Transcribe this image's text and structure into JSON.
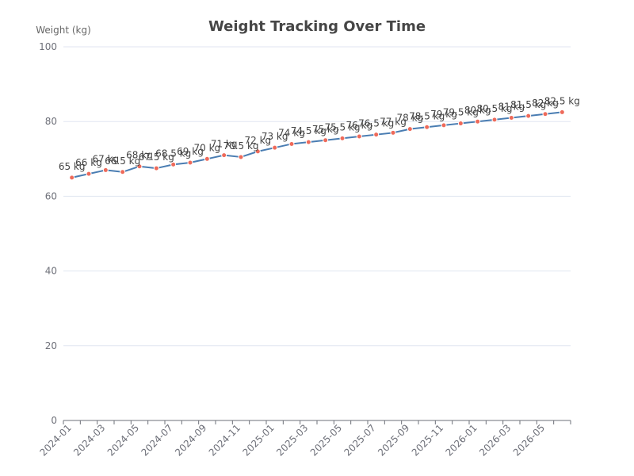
{
  "chart_data": {
    "type": "line",
    "title": "Weight Tracking Over Time",
    "xlabel": "",
    "ylabel": "Weight (kg)",
    "ylim": [
      0,
      100
    ],
    "yticks": [
      0,
      20,
      40,
      60,
      80,
      100
    ],
    "x_tick_labels": [
      "2024-01",
      "2024-03",
      "2024-05",
      "2024-07",
      "2024-09",
      "2024-11",
      "2025-01",
      "2025-03",
      "2025-05",
      "2025-07",
      "2025-09",
      "2025-11",
      "2026-01",
      "2026-03",
      "2026-05"
    ],
    "grid": true,
    "legend": "none",
    "line_color": "#4a7db2",
    "point_color": "#ee6a5a",
    "x": [
      "2024-01",
      "2024-02",
      "2024-03",
      "2024-04",
      "2024-05",
      "2024-06",
      "2024-07",
      "2024-08",
      "2024-09",
      "2024-10",
      "2024-11",
      "2024-12",
      "2025-01",
      "2025-02",
      "2025-03",
      "2025-04",
      "2025-05",
      "2025-06",
      "2025-07",
      "2025-08",
      "2025-09",
      "2025-10",
      "2025-11",
      "2025-12",
      "2026-01",
      "2026-02",
      "2026-03",
      "2026-04",
      "2026-05",
      "2026-06"
    ],
    "values": [
      65,
      66,
      67,
      66.5,
      68,
      67.5,
      68.5,
      69,
      70,
      71,
      70.5,
      72,
      73,
      74,
      74.5,
      75,
      75.5,
      76,
      76.5,
      77,
      78,
      78.5,
      79,
      79.5,
      80,
      80.5,
      81,
      81.5,
      82,
      82.5
    ],
    "data_labels": [
      "65 kg",
      "66 kg",
      "67 kg",
      "66.5 kg",
      "68 kg",
      "67.5 kg",
      "68.5 kg",
      "69 kg",
      "70 kg",
      "71 kg",
      "70.5 kg",
      "72 kg",
      "73 kg",
      "74 kg",
      "74.5 kg",
      "75 kg",
      "75.5 kg",
      "76 kg",
      "76.5 kg",
      "77 kg",
      "78 kg",
      "78.5 kg",
      "79 kg",
      "79.5 kg",
      "80 kg",
      "80.5 kg",
      "81 kg",
      "81.5 kg",
      "82 kg",
      "82.5 kg"
    ]
  }
}
